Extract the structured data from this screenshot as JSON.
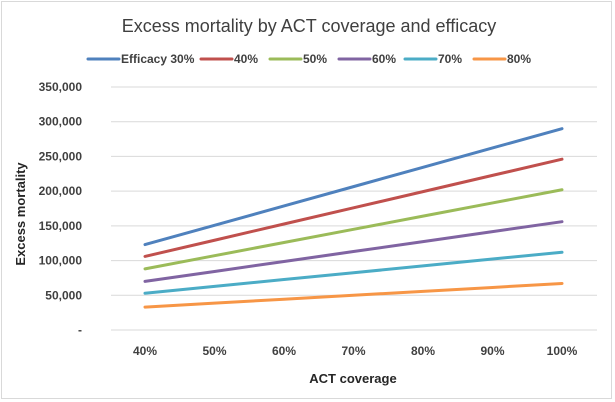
{
  "chart_data": {
    "type": "line",
    "title": "Excess mortality by ACT coverage and efficacy",
    "xlabel": "ACT coverage",
    "ylabel": "Excess mortality",
    "x": [
      "40%",
      "50%",
      "60%",
      "70%",
      "80%",
      "90%",
      "100%"
    ],
    "ylim": [
      0,
      350000
    ],
    "yticks": [
      0,
      50000,
      100000,
      150000,
      200000,
      250000,
      300000,
      350000
    ],
    "ytick_labels": [
      "-",
      "50,000",
      "100,000",
      "150,000",
      "200,000",
      "250,000",
      "300,000",
      "350,000"
    ],
    "grid": true,
    "legend_position": "top",
    "series": [
      {
        "name": "Efficacy 30%",
        "color": "#4F81BD",
        "values": [
          123000,
          150800,
          178700,
          206500,
          234300,
          262200,
          290000
        ]
      },
      {
        "name": "40%",
        "color": "#C0504D",
        "values": [
          106000,
          129300,
          152700,
          176000,
          199300,
          222700,
          246000
        ]
      },
      {
        "name": "50%",
        "color": "#9BBB59",
        "values": [
          88000,
          107000,
          126000,
          145000,
          164000,
          183000,
          202000
        ]
      },
      {
        "name": "60%",
        "color": "#8064A2",
        "values": [
          70000,
          84300,
          98700,
          113000,
          127300,
          141700,
          156000
        ]
      },
      {
        "name": "70%",
        "color": "#4BACC6",
        "values": [
          53000,
          62800,
          72700,
          82500,
          92300,
          102200,
          112000
        ]
      },
      {
        "name": "80%",
        "color": "#F79646",
        "values": [
          33000,
          38700,
          44300,
          50000,
          55700,
          61300,
          67000
        ]
      }
    ]
  }
}
